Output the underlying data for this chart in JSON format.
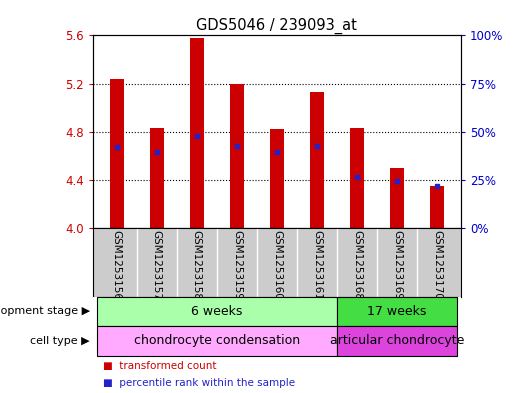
{
  "title": "GDS5046 / 239093_at",
  "samples": [
    "GSM1253156",
    "GSM1253157",
    "GSM1253158",
    "GSM1253159",
    "GSM1253160",
    "GSM1253161",
    "GSM1253168",
    "GSM1253169",
    "GSM1253170"
  ],
  "transformed_count": [
    5.24,
    4.83,
    5.58,
    5.2,
    4.82,
    5.13,
    4.83,
    4.5,
    4.35
  ],
  "percentile_rank": [
    4.67,
    4.63,
    4.76,
    4.68,
    4.63,
    4.68,
    4.42,
    4.39,
    4.35
  ],
  "ylim": [
    4.0,
    5.6
  ],
  "y_left_ticks": [
    4.0,
    4.4,
    4.8,
    5.2,
    5.6
  ],
  "y_right_ticks": [
    0,
    25,
    50,
    75,
    100
  ],
  "bar_color": "#cc0000",
  "dot_color": "#2222cc",
  "bar_width": 0.35,
  "dev_stage_color_1": "#aaffaa",
  "dev_stage_color_2": "#44dd44",
  "cell_type_color_1": "#ffaaff",
  "cell_type_color_2": "#dd44dd",
  "label_color_left": "#cc0000",
  "label_color_right": "#0000cc",
  "sample_bg": "#cccccc",
  "bg_color": "#ffffff"
}
